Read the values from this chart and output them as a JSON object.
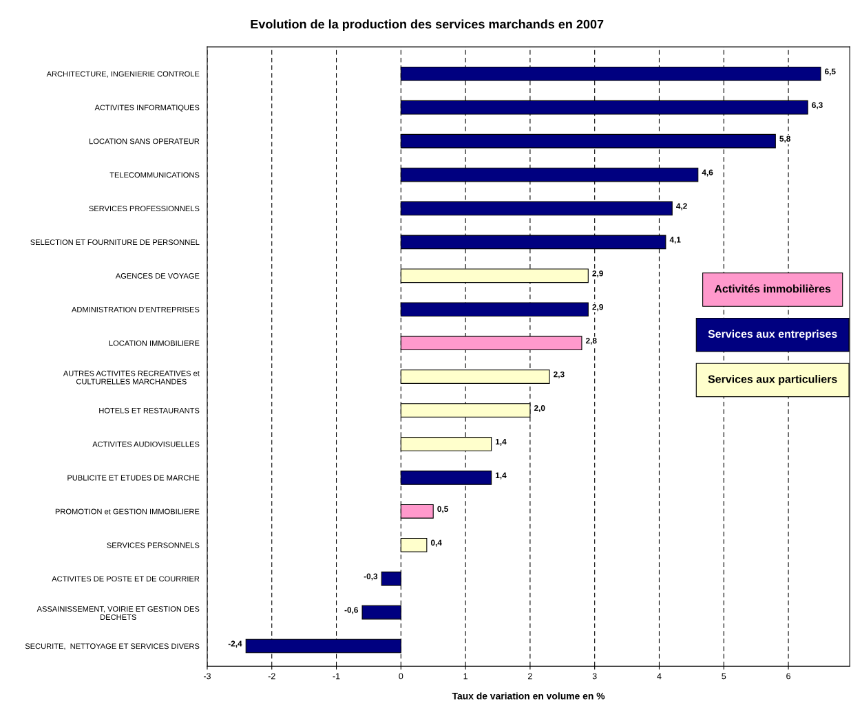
{
  "chart_data": {
    "type": "bar",
    "orientation": "horizontal",
    "title": "Evolution de la production des services marchands en 2007",
    "xlabel": "Taux de variation en volume en %",
    "categories": [
      "ARCHITECTURE, INGENIERIE CONTROLE",
      "ACTIVITES INFORMATIQUES",
      "LOCATION SANS OPERATEUR",
      "TELECOMMUNICATIONS",
      "SERVICES PROFESSIONNELS",
      "SELECTION ET FOURNITURE DE PERSONNEL",
      "AGENCES DE VOYAGE",
      "ADMINISTRATION D'ENTREPRISES",
      "LOCATION IMMOBILIERE",
      "AUTRES ACTIVITES RECREATIVES et\nCULTURELLES MARCHANDES",
      "HOTELS ET RESTAURANTS",
      "ACTIVITES AUDIOVISUELLES",
      "PUBLICITE ET ETUDES DE MARCHE",
      "PROMOTION et GESTION IMMOBILIERE",
      "SERVICES PERSONNELS",
      "ACTIVITES DE POSTE ET DE COURRIER",
      "ASSAINISSEMENT, VOIRIE ET GESTION DES\nDECHETS",
      "SECURITE,  NETTOYAGE ET SERVICES DIVERS"
    ],
    "series": [
      {
        "name": "Activités immobilières",
        "color": "#ff99cc",
        "values": [
          null,
          null,
          null,
          null,
          null,
          null,
          null,
          null,
          2.8,
          null,
          null,
          null,
          null,
          0.5,
          null,
          null,
          null,
          null
        ],
        "value_labels": [
          null,
          null,
          null,
          null,
          null,
          null,
          null,
          null,
          "2,8",
          null,
          null,
          null,
          null,
          "0,5",
          null,
          null,
          null,
          null
        ]
      },
      {
        "name": "Services aux entreprises",
        "color": "#000080",
        "values": [
          6.5,
          6.3,
          5.8,
          4.6,
          4.2,
          4.1,
          null,
          2.9,
          null,
          null,
          null,
          null,
          1.4,
          null,
          null,
          -0.3,
          -0.6,
          -2.4
        ],
        "value_labels": [
          "6,5",
          "6,3",
          "5,8",
          "4,6",
          "4,2",
          "4,1",
          null,
          "2,9",
          null,
          null,
          null,
          null,
          "1,4",
          null,
          null,
          "-0,3",
          "-0,6",
          "-2,4"
        ]
      },
      {
        "name": "Services aux particuliers",
        "color": "#ffffcc",
        "values": [
          null,
          null,
          null,
          null,
          null,
          null,
          2.9,
          null,
          null,
          2.3,
          2.0,
          1.4,
          null,
          null,
          0.4,
          null,
          null,
          null
        ],
        "value_labels": [
          null,
          null,
          null,
          null,
          null,
          null,
          "2,9",
          null,
          null,
          "2,3",
          "2,0",
          "1,4",
          null,
          null,
          "0,4",
          null,
          null,
          null
        ]
      }
    ],
    "xlim": [
      -3,
      6.95
    ],
    "xticks": [
      -3,
      -2,
      -1,
      0,
      1,
      2,
      3,
      4,
      5,
      6
    ],
    "grid": "x",
    "legend": "right"
  }
}
